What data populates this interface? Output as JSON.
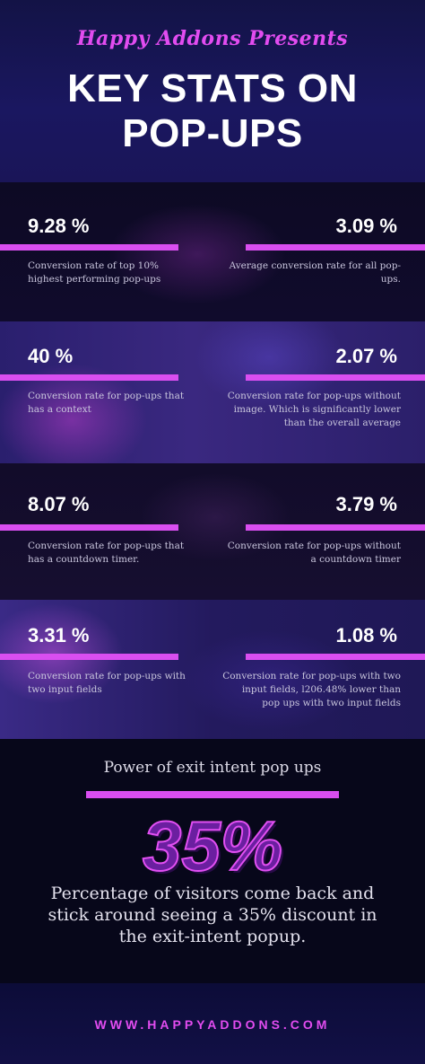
{
  "header": {
    "presents": "Happy Addons Presents",
    "title_line1": "KEY STATS ON",
    "title_line2": "POP-UPS"
  },
  "stats": [
    {
      "value": "9.28 %",
      "desc": "Conversion rate of top 10% highest performing pop-ups"
    },
    {
      "value": "3.09 %",
      "desc": "Average conversion rate for all pop-ups."
    },
    {
      "value": "40 %",
      "desc": "Conversion rate for pop-ups that has a context"
    },
    {
      "value": "2.07 %",
      "desc": "Conversion rate for pop-ups without image. Which is significantly lower than the overall average"
    },
    {
      "value": "8.07 %",
      "desc": "Conversion rate for pop-ups that has a countdown timer."
    },
    {
      "value": "3.79 %",
      "desc": "Conversion rate for pop-ups without a countdown timer"
    },
    {
      "value": "3.31 %",
      "desc": "Conversion rate for pop-ups with two input fields"
    },
    {
      "value": "1.08 %",
      "desc": "Conversion rate for pop-ups with two input fields, l206.48% lower than pop ups with two input fields"
    }
  ],
  "exit_intent": {
    "heading": "Power of exit intent pop ups",
    "big_value": "35%",
    "text": "Percentage of visitors come back and stick around seeing a 35% discount in the exit-intent popup."
  },
  "footer": {
    "url": "WWW.HAPPYADDONS.COM"
  },
  "colors": {
    "accent": "#d94ef0",
    "background": "#0b0a2a",
    "header_bg": "#1a1760"
  }
}
